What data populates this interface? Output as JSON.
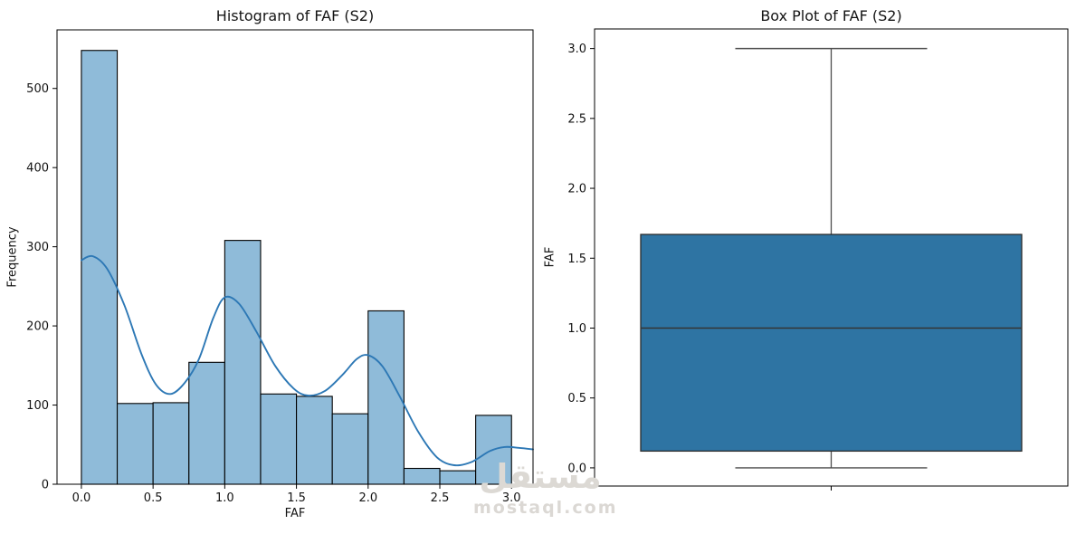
{
  "figure": {
    "background": "#ffffff",
    "text_color": "#141414"
  },
  "watermark": {
    "logo_text": "مستقل",
    "domain_text": "mostaql.com",
    "logo_color": "#dcd9d4",
    "domain_color": "#dbd8d4"
  },
  "chart_data": [
    {
      "type": "histogram",
      "title": "Histogram of FAF (S2)",
      "xlabel": "FAF",
      "ylabel": "Frequency",
      "bins": {
        "start": 0.0,
        "width": 0.25,
        "count": 12
      },
      "counts": [
        548,
        102,
        103,
        154,
        308,
        114,
        111,
        89,
        219,
        20,
        17,
        87
      ],
      "kde_line": {
        "x": [
          0.0,
          0.08,
          0.18,
          0.3,
          0.42,
          0.52,
          0.62,
          0.72,
          0.82,
          0.92,
          1.0,
          1.1,
          1.22,
          1.35,
          1.48,
          1.58,
          1.7,
          1.82,
          1.92,
          2.0,
          2.1,
          2.22,
          2.35,
          2.48,
          2.6,
          2.72,
          2.85,
          2.95,
          3.05,
          3.15
        ],
        "y": [
          283,
          288,
          272,
          226,
          164,
          126,
          114,
          128,
          158,
          210,
          236,
          228,
          193,
          150,
          121,
          112,
          118,
          138,
          158,
          163,
          149,
          111,
          66,
          34,
          24,
          28,
          42,
          47,
          46,
          44
        ]
      },
      "xlim": [
        -0.17,
        3.15
      ],
      "ylim": [
        0,
        574
      ],
      "xticks": {
        "values": [
          0,
          0.5,
          1,
          1.5,
          2,
          2.5,
          3
        ],
        "labels": [
          "0.0",
          "0.5",
          "1.0",
          "1.5",
          "2.0",
          "2.5",
          "3.0"
        ]
      },
      "yticks": {
        "values": [
          0,
          100,
          200,
          300,
          400,
          500
        ],
        "labels": [
          "0",
          "100",
          "200",
          "300",
          "400",
          "500"
        ]
      },
      "grid": false,
      "colors": {
        "bar_fill": "#8fbbd9",
        "bar_edge": "#000000",
        "kde": "#2d78b5"
      }
    },
    {
      "type": "box",
      "title": "Box Plot of FAF (S2)",
      "xlabel": "",
      "ylabel": "FAF",
      "stats": {
        "whisker_low": 0.0,
        "q1": 0.12,
        "median": 1.0,
        "q3": 1.67,
        "whisker_high": 3.0
      },
      "ylim": [
        -0.13,
        3.14
      ],
      "yticks": {
        "values": [
          0,
          0.5,
          1,
          1.5,
          2,
          2.5,
          3
        ],
        "labels": [
          "0.0",
          "0.5",
          "1.0",
          "1.5",
          "2.0",
          "2.5",
          "3.0"
        ]
      },
      "grid": false,
      "colors": {
        "box_fill": "#2e74a3",
        "box_edge": "#2b2b2b",
        "whisker": "#4d4d4d",
        "median": "#343434"
      }
    }
  ]
}
